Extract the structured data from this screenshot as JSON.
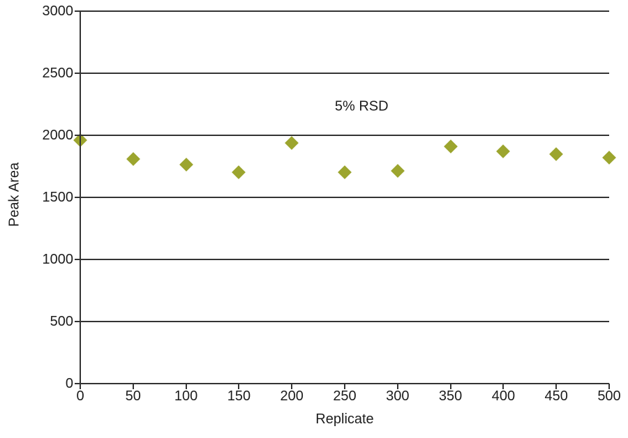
{
  "chart_data": {
    "type": "scatter",
    "title": "",
    "xlabel": "Replicate",
    "ylabel": "Peak Area",
    "annotation": "5% RSD",
    "annotation_xy": [
      266,
      2230
    ],
    "x": [
      0,
      50,
      100,
      150,
      200,
      250,
      300,
      350,
      400,
      450,
      500
    ],
    "y": [
      1960,
      1810,
      1765,
      1705,
      1940,
      1700,
      1715,
      1910,
      1870,
      1850,
      1820
    ],
    "xlim": [
      0,
      500
    ],
    "ylim": [
      0,
      3000
    ],
    "x_ticks": [
      0,
      50,
      100,
      150,
      200,
      250,
      300,
      350,
      400,
      450,
      500
    ],
    "y_ticks": [
      0,
      500,
      1000,
      1500,
      2000,
      2500,
      3000
    ],
    "marker": "diamond",
    "marker_color": "#9ca52e",
    "axis_color": "#333333",
    "text_color": "#1d1d1d",
    "grid": "horizontal-only",
    "legend": "none"
  }
}
